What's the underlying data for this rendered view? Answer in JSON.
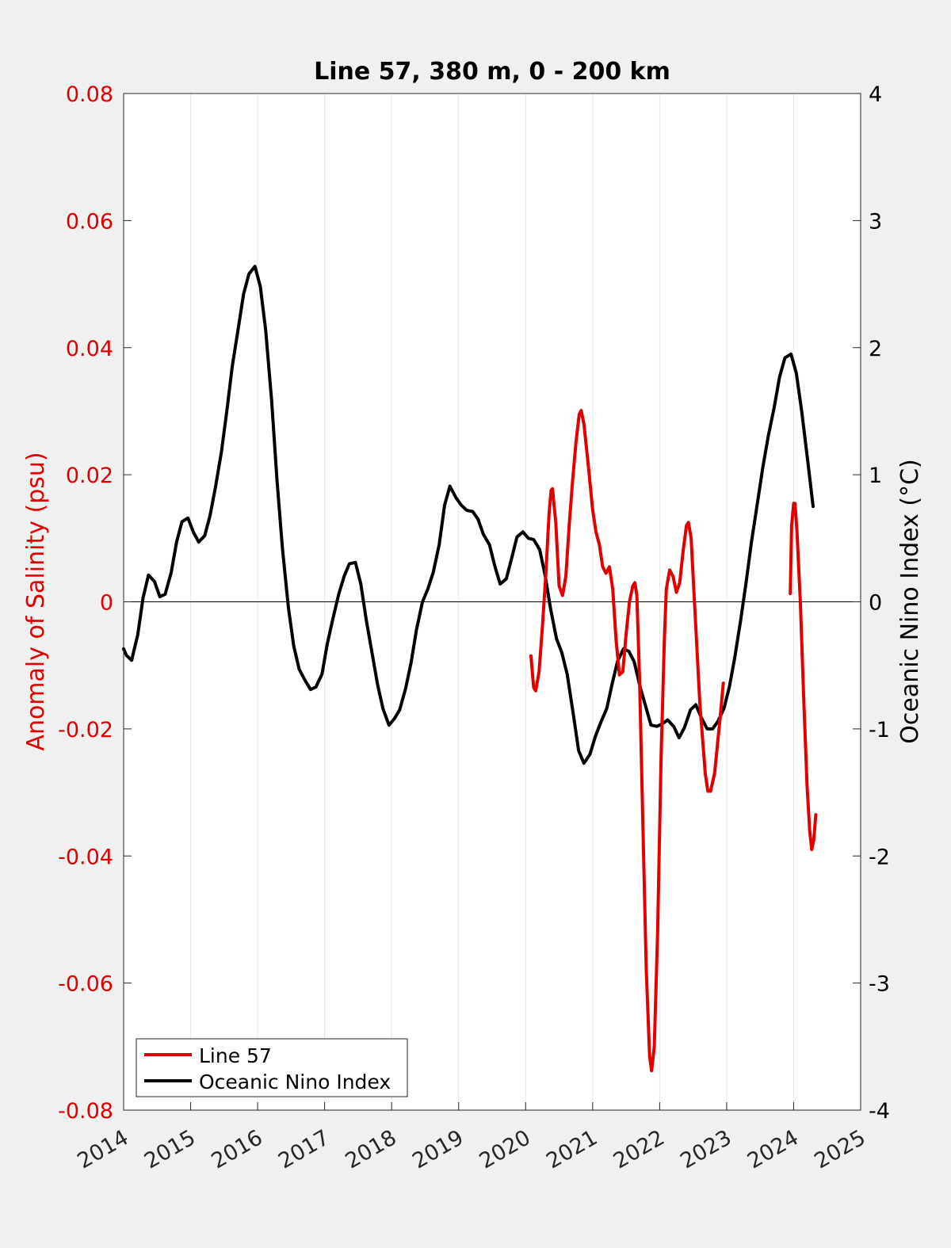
{
  "chart_data": {
    "type": "line",
    "title": "Line 57, 380 m, 0 - 200 km",
    "ylabel_left": "Anomaly of Salinity (psu)",
    "ylabel_right": "Oceanic Nino Index (°C)",
    "xlabel": "",
    "xlim": [
      2014,
      2025
    ],
    "ylim_left": [
      -0.08,
      0.08
    ],
    "ylim_right": [
      -4,
      4
    ],
    "x_ticks": [
      2014,
      2015,
      2016,
      2017,
      2018,
      2019,
      2020,
      2021,
      2022,
      2023,
      2024,
      2025
    ],
    "y_ticks_left": [
      "0.08",
      "0.06",
      "0.04",
      "0.02",
      "0",
      "-0.02",
      "-0.04",
      "-0.06",
      "-0.08"
    ],
    "y_ticks_right": [
      "4",
      "3",
      "2",
      "1",
      "0",
      "-1",
      "-2",
      "-3",
      "-4"
    ],
    "grid_x": true,
    "zero_line": true,
    "legend_position": "bottom-left",
    "colors": {
      "line57": "#e00000",
      "oni": "#000000",
      "left_axis": "#e00000",
      "right_axis": "#000000",
      "background": "#f0f0f0",
      "plot_bg": "#ffffff"
    },
    "series": [
      {
        "name": "Line 57",
        "axis": "left",
        "color": "#e00000",
        "segments": [
          [
            [
              2020.08,
              -0.0085
            ],
            [
              2020.12,
              -0.0135
            ],
            [
              2020.15,
              -0.014
            ],
            [
              2020.2,
              -0.011
            ],
            [
              2020.25,
              -0.004
            ],
            [
              2020.3,
              0.004
            ],
            [
              2020.35,
              0.014
            ],
            [
              2020.38,
              0.0175
            ],
            [
              2020.4,
              0.0178
            ],
            [
              2020.45,
              0.0125
            ],
            [
              2020.5,
              0.0025
            ],
            [
              2020.55,
              0.001
            ],
            [
              2020.6,
              0.004
            ],
            [
              2020.65,
              0.012
            ],
            [
              2020.7,
              0.019
            ],
            [
              2020.75,
              0.025
            ],
            [
              2020.8,
              0.0295
            ],
            [
              2020.83,
              0.0301
            ],
            [
              2020.87,
              0.028
            ],
            [
              2020.93,
              0.022
            ],
            [
              2021.0,
              0.0145
            ],
            [
              2021.05,
              0.011
            ],
            [
              2021.1,
              0.009
            ],
            [
              2021.15,
              0.0055
            ],
            [
              2021.2,
              0.0045
            ],
            [
              2021.25,
              0.0055
            ],
            [
              2021.3,
              0.002
            ],
            [
              2021.35,
              -0.006
            ],
            [
              2021.4,
              -0.0115
            ],
            [
              2021.45,
              -0.011
            ],
            [
              2021.5,
              -0.005
            ],
            [
              2021.55,
              0.0
            ],
            [
              2021.6,
              0.0025
            ],
            [
              2021.63,
              0.003
            ],
            [
              2021.66,
              0.001
            ],
            [
              2021.7,
              -0.012
            ],
            [
              2021.75,
              -0.035
            ],
            [
              2021.8,
              -0.058
            ],
            [
              2021.85,
              -0.0715
            ],
            [
              2021.88,
              -0.0738
            ],
            [
              2021.92,
              -0.07
            ],
            [
              2021.97,
              -0.052
            ],
            [
              2022.02,
              -0.025
            ],
            [
              2022.07,
              -0.006
            ],
            [
              2022.1,
              0.002
            ],
            [
              2022.15,
              0.005
            ],
            [
              2022.2,
              0.004
            ],
            [
              2022.25,
              0.0015
            ],
            [
              2022.3,
              0.003
            ],
            [
              2022.35,
              0.008
            ],
            [
              2022.4,
              0.012
            ],
            [
              2022.43,
              0.0125
            ],
            [
              2022.47,
              0.01
            ],
            [
              2022.52,
              0.0
            ],
            [
              2022.6,
              -0.016
            ],
            [
              2022.68,
              -0.027
            ],
            [
              2022.72,
              -0.0298
            ],
            [
              2022.76,
              -0.0298
            ],
            [
              2022.82,
              -0.027
            ],
            [
              2022.9,
              -0.0185
            ],
            [
              2022.95,
              -0.0128
            ]
          ],
          [
            [
              2023.95,
              0.0013
            ],
            [
              2023.97,
              0.012
            ],
            [
              2024.0,
              0.0155
            ],
            [
              2024.02,
              0.0155
            ],
            [
              2024.05,
              0.011
            ],
            [
              2024.1,
              0.0
            ],
            [
              2024.15,
              -0.015
            ],
            [
              2024.2,
              -0.029
            ],
            [
              2024.24,
              -0.036
            ],
            [
              2024.27,
              -0.039
            ],
            [
              2024.3,
              -0.0375
            ],
            [
              2024.33,
              -0.0335
            ]
          ]
        ]
      },
      {
        "name": "Oceanic Nino Index",
        "axis": "right",
        "color": "#000000",
        "segments": [
          [
            [
              2014.0,
              -0.37
            ],
            [
              2014.04,
              -0.42
            ],
            [
              2014.12,
              -0.46
            ],
            [
              2014.21,
              -0.26
            ],
            [
              2014.29,
              0.03
            ],
            [
              2014.37,
              0.21
            ],
            [
              2014.46,
              0.16
            ],
            [
              2014.54,
              0.04
            ],
            [
              2014.62,
              0.06
            ],
            [
              2014.71,
              0.23
            ],
            [
              2014.79,
              0.47
            ],
            [
              2014.87,
              0.63
            ],
            [
              2014.96,
              0.66
            ],
            [
              2015.04,
              0.55
            ],
            [
              2015.12,
              0.47
            ],
            [
              2015.21,
              0.52
            ],
            [
              2015.29,
              0.68
            ],
            [
              2015.37,
              0.9
            ],
            [
              2015.46,
              1.18
            ],
            [
              2015.54,
              1.5
            ],
            [
              2015.62,
              1.85
            ],
            [
              2015.71,
              2.15
            ],
            [
              2015.79,
              2.42
            ],
            [
              2015.87,
              2.58
            ],
            [
              2015.96,
              2.64
            ],
            [
              2016.04,
              2.48
            ],
            [
              2016.12,
              2.14
            ],
            [
              2016.21,
              1.58
            ],
            [
              2016.29,
              0.95
            ],
            [
              2016.37,
              0.42
            ],
            [
              2016.46,
              -0.05
            ],
            [
              2016.54,
              -0.35
            ],
            [
              2016.62,
              -0.53
            ],
            [
              2016.71,
              -0.62
            ],
            [
              2016.79,
              -0.69
            ],
            [
              2016.87,
              -0.67
            ],
            [
              2016.96,
              -0.57
            ],
            [
              2017.04,
              -0.33
            ],
            [
              2017.12,
              -0.14
            ],
            [
              2017.21,
              0.06
            ],
            [
              2017.29,
              0.2
            ],
            [
              2017.37,
              0.3
            ],
            [
              2017.46,
              0.31
            ],
            [
              2017.54,
              0.14
            ],
            [
              2017.62,
              -0.14
            ],
            [
              2017.71,
              -0.41
            ],
            [
              2017.79,
              -0.65
            ],
            [
              2017.87,
              -0.84
            ],
            [
              2017.96,
              -0.97
            ],
            [
              2018.04,
              -0.92
            ],
            [
              2018.12,
              -0.85
            ],
            [
              2018.21,
              -0.68
            ],
            [
              2018.29,
              -0.48
            ],
            [
              2018.37,
              -0.22
            ],
            [
              2018.46,
              0.0
            ],
            [
              2018.54,
              0.1
            ],
            [
              2018.62,
              0.23
            ],
            [
              2018.71,
              0.45
            ],
            [
              2018.79,
              0.76
            ],
            [
              2018.87,
              0.91
            ],
            [
              2018.96,
              0.82
            ],
            [
              2019.04,
              0.76
            ],
            [
              2019.12,
              0.72
            ],
            [
              2019.21,
              0.71
            ],
            [
              2019.29,
              0.65
            ],
            [
              2019.37,
              0.53
            ],
            [
              2019.46,
              0.45
            ],
            [
              2019.54,
              0.28
            ],
            [
              2019.62,
              0.14
            ],
            [
              2019.71,
              0.18
            ],
            [
              2019.79,
              0.34
            ],
            [
              2019.87,
              0.51
            ],
            [
              2019.96,
              0.55
            ],
            [
              2020.04,
              0.5
            ],
            [
              2020.12,
              0.49
            ],
            [
              2020.21,
              0.41
            ],
            [
              2020.29,
              0.21
            ],
            [
              2020.37,
              -0.05
            ],
            [
              2020.46,
              -0.29
            ],
            [
              2020.54,
              -0.4
            ],
            [
              2020.62,
              -0.57
            ],
            [
              2020.71,
              -0.88
            ],
            [
              2020.79,
              -1.17
            ],
            [
              2020.87,
              -1.27
            ],
            [
              2020.96,
              -1.2
            ],
            [
              2021.04,
              -1.06
            ],
            [
              2021.12,
              -0.95
            ],
            [
              2021.21,
              -0.84
            ],
            [
              2021.29,
              -0.65
            ],
            [
              2021.37,
              -0.47
            ],
            [
              2021.46,
              -0.37
            ],
            [
              2021.54,
              -0.39
            ],
            [
              2021.62,
              -0.47
            ],
            [
              2021.71,
              -0.67
            ],
            [
              2021.79,
              -0.82
            ],
            [
              2021.87,
              -0.97
            ],
            [
              2021.96,
              -0.98
            ],
            [
              2022.04,
              -0.96
            ],
            [
              2022.12,
              -0.93
            ],
            [
              2022.21,
              -0.98
            ],
            [
              2022.29,
              -1.07
            ],
            [
              2022.37,
              -0.99
            ],
            [
              2022.46,
              -0.85
            ],
            [
              2022.54,
              -0.81
            ],
            [
              2022.62,
              -0.91
            ],
            [
              2022.71,
              -1.0
            ],
            [
              2022.79,
              -1.0
            ],
            [
              2022.87,
              -0.94
            ],
            [
              2022.96,
              -0.84
            ],
            [
              2023.04,
              -0.67
            ],
            [
              2023.12,
              -0.44
            ],
            [
              2023.21,
              -0.14
            ],
            [
              2023.29,
              0.15
            ],
            [
              2023.37,
              0.47
            ],
            [
              2023.46,
              0.78
            ],
            [
              2023.54,
              1.06
            ],
            [
              2023.62,
              1.3
            ],
            [
              2023.71,
              1.53
            ],
            [
              2023.79,
              1.77
            ],
            [
              2023.87,
              1.92
            ],
            [
              2023.96,
              1.95
            ],
            [
              2024.04,
              1.8
            ],
            [
              2024.12,
              1.5
            ],
            [
              2024.21,
              1.11
            ],
            [
              2024.29,
              0.75
            ]
          ]
        ]
      }
    ]
  }
}
